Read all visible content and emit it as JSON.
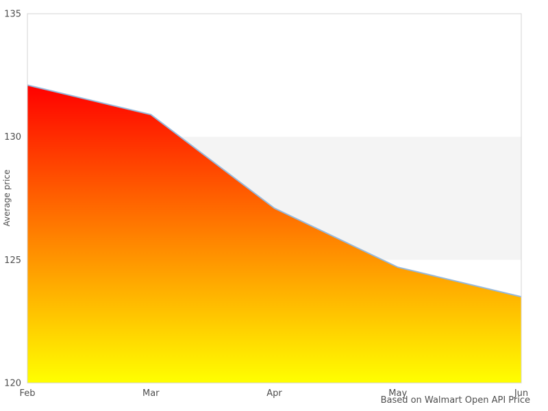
{
  "chart_data": {
    "type": "area",
    "categories": [
      "Feb",
      "Mar",
      "Apr",
      "May",
      "Jun"
    ],
    "values": [
      132.1,
      130.9,
      127.1,
      124.7,
      123.5
    ],
    "title": "",
    "xlabel": "",
    "ylabel": "Average price",
    "ylim": [
      120,
      135
    ],
    "yticks": [
      135,
      130,
      125,
      120
    ],
    "band": {
      "from": 125,
      "to": 130,
      "color": "#f4f4f4"
    },
    "grid": false,
    "legend": "none",
    "caption": "Based on Walmart Open API Price",
    "colors": {
      "area_gradient_top": "#ff0000",
      "area_gradient_bottom": "#ffff00",
      "line": "#96b9dc",
      "plot_border": "#d3d3d3",
      "text": "#4d4d4d",
      "background": "#ffffff"
    }
  }
}
